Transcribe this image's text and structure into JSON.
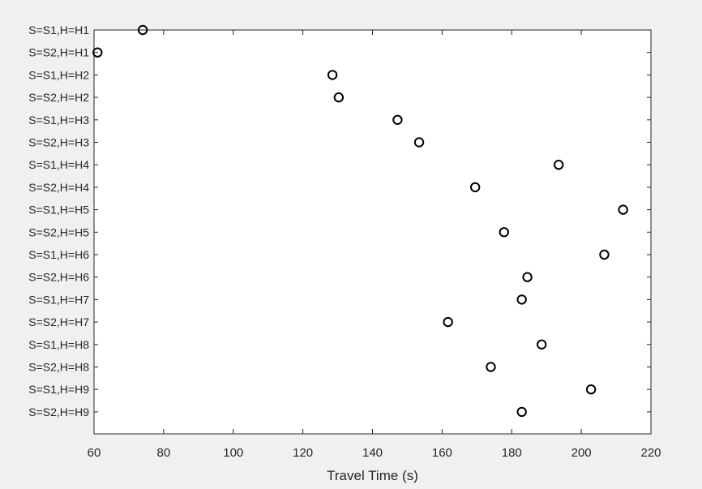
{
  "chart_data": {
    "type": "scatter",
    "title": "",
    "xlabel": "Travel Time (s)",
    "ylabel": "",
    "xlim": [
      60,
      220
    ],
    "xticks": [
      60,
      80,
      100,
      120,
      140,
      160,
      180,
      200,
      220
    ],
    "grid": false,
    "legend": "none",
    "marker": "open-circle",
    "colors": {
      "marker": "#000000",
      "axes": "#262626",
      "plot_bg": "#ffffff",
      "figure_bg": "#f0f0f0"
    },
    "categories": [
      "S=S1,H=H1",
      "S=S2,H=H1",
      "S=S1,H=H2",
      "S=S2,H=H2",
      "S=S1,H=H3",
      "S=S2,H=H3",
      "S=S1,H=H4",
      "S=S2,H=H4",
      "S=S1,H=H5",
      "S=S2,H=H5",
      "S=S1,H=H6",
      "S=S2,H=H6",
      "S=S1,H=H7",
      "S=S2,H=H7",
      "S=S1,H=H8",
      "S=S2,H=H8",
      "S=S1,H=H9",
      "S=S2,H=H9"
    ],
    "values": [
      74,
      61,
      128.5,
      130.3,
      147.2,
      153.4,
      193.5,
      169.5,
      212,
      177.8,
      206.6,
      184.5,
      182.9,
      161.7,
      188.6,
      174,
      202.8,
      182.9
    ]
  }
}
